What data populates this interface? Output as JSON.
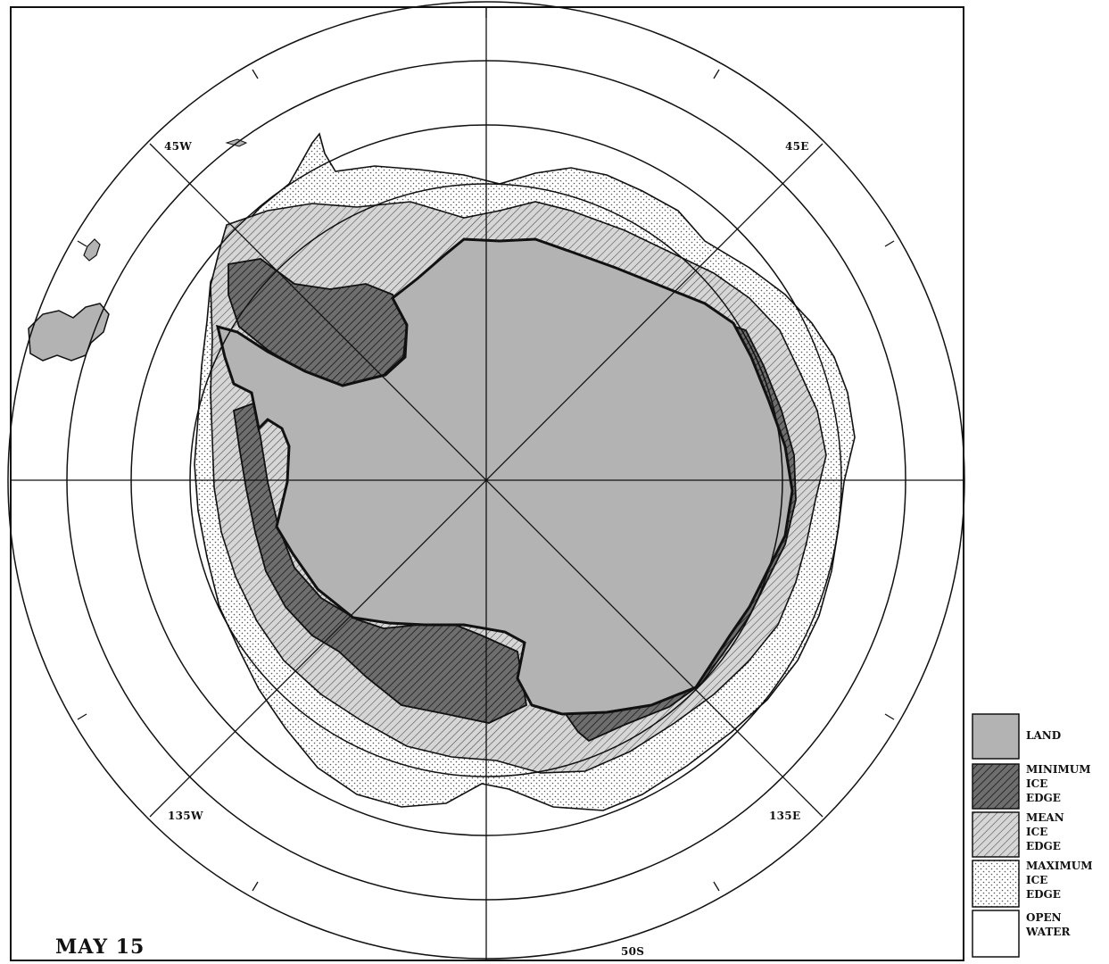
{
  "map": {
    "date_label": "MAY 15",
    "longitude_labels": {
      "nw": "45W",
      "ne": "45E",
      "sw": "135W",
      "se": "135E"
    },
    "latitude_label": "50S",
    "colors": {
      "land": "#b3b3b3",
      "minimum_fill": "#6e6e6e",
      "mean_fill": "#cfcfcf",
      "maximum_fill": "#ffffff",
      "open_water": "#ffffff",
      "line": "#111111"
    }
  },
  "legend": {
    "items": [
      {
        "key": "land",
        "lines": [
          "LAND"
        ]
      },
      {
        "key": "minimum",
        "lines": [
          "MINIMUM",
          "ICE",
          "EDGE"
        ]
      },
      {
        "key": "mean",
        "lines": [
          "MEAN",
          "ICE",
          "EDGE"
        ]
      },
      {
        "key": "maximum",
        "lines": [
          "MAXIMUM",
          "ICE",
          "EDGE"
        ]
      },
      {
        "key": "open",
        "lines": [
          "OPEN",
          "WATER"
        ]
      }
    ]
  }
}
